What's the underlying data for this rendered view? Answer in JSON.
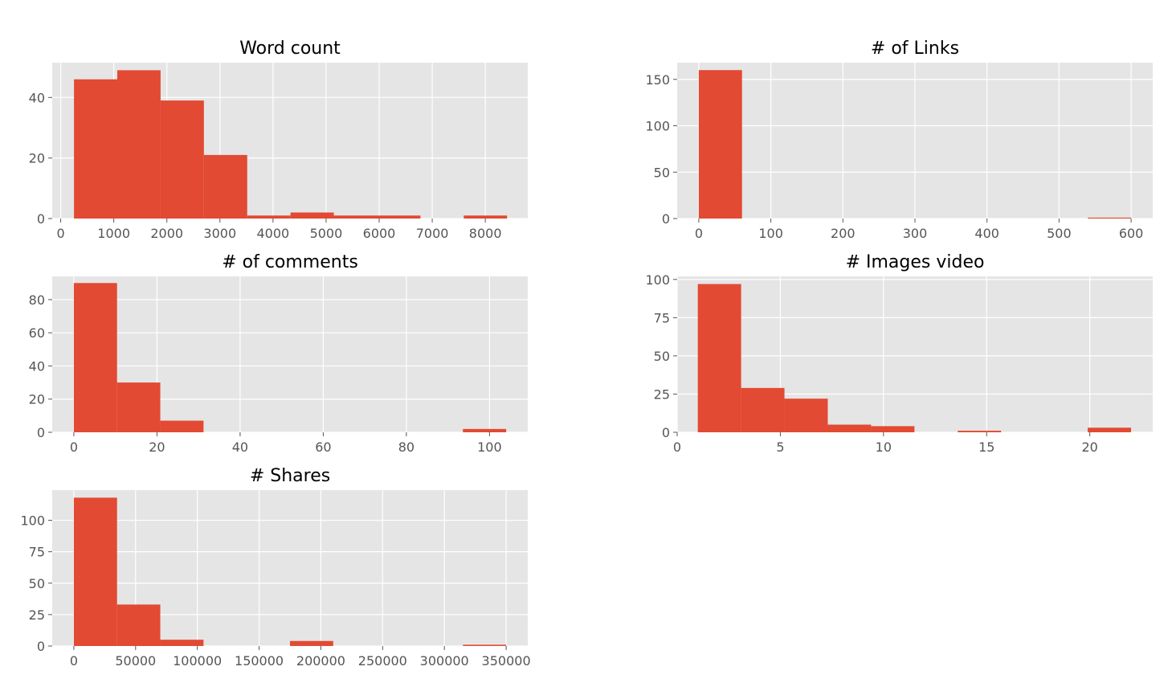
{
  "chart_data": [
    {
      "type": "bar",
      "title": "Word count",
      "xlim": [
        -160,
        8800
      ],
      "ylim": [
        0,
        51.5
      ],
      "xticks": [
        0,
        1000,
        2000,
        3000,
        4000,
        5000,
        6000,
        7000,
        8000
      ],
      "yticks": [
        0,
        20,
        40
      ],
      "bin_edges": [
        250,
        1066,
        1882,
        2698,
        3514,
        4330,
        5146,
        5962,
        6778,
        7594,
        8410
      ],
      "values": [
        46,
        49,
        39,
        21,
        1,
        2,
        1,
        1,
        0,
        1
      ],
      "grid": true,
      "legend": "none"
    },
    {
      "type": "bar",
      "title": "# of Links",
      "xlim": [
        -30,
        630
      ],
      "ylim": [
        0,
        168
      ],
      "xticks": [
        0,
        100,
        200,
        300,
        400,
        500,
        600
      ],
      "yticks": [
        0,
        50,
        100,
        150
      ],
      "bin_edges": [
        0,
        60,
        120,
        180,
        240,
        300,
        360,
        420,
        480,
        540,
        600
      ],
      "values": [
        160,
        0,
        0,
        0,
        0,
        0,
        0,
        0,
        0,
        1
      ],
      "grid": true,
      "legend": "none"
    },
    {
      "type": "bar",
      "title": "# of comments",
      "xlim": [
        -5.2,
        109.2
      ],
      "ylim": [
        0,
        94
      ],
      "xticks": [
        0,
        20,
        40,
        60,
        80,
        100
      ],
      "yticks": [
        0,
        20,
        40,
        60,
        80
      ],
      "bin_edges": [
        0,
        10.4,
        20.8,
        31.2,
        41.6,
        52,
        62.4,
        72.8,
        83.2,
        93.6,
        104
      ],
      "values": [
        90,
        30,
        7,
        0,
        0,
        0,
        0,
        0,
        0,
        2
      ],
      "grid": true,
      "legend": "none"
    },
    {
      "type": "bar",
      "title": "# Images video",
      "xlim": [
        0,
        23.05
      ],
      "ylim": [
        0,
        102
      ],
      "xticks": [
        0,
        5,
        10,
        15,
        20
      ],
      "yticks": [
        0,
        25,
        50,
        75,
        100
      ],
      "bin_edges": [
        1,
        3.1,
        5.2,
        7.3,
        9.4,
        11.5,
        13.6,
        15.7,
        17.8,
        19.9,
        22
      ],
      "values": [
        97,
        29,
        22,
        5,
        4,
        0,
        1,
        0,
        0,
        3
      ],
      "grid": true,
      "legend": "none"
    },
    {
      "type": "bar",
      "title": "# Shares",
      "xlim": [
        -17500,
        367500
      ],
      "ylim": [
        0,
        124
      ],
      "xticks": [
        0,
        50000,
        100000,
        150000,
        200000,
        250000,
        300000,
        350000
      ],
      "yticks": [
        0,
        25,
        50,
        75,
        100
      ],
      "bin_edges": [
        0,
        35000,
        70000,
        105000,
        140000,
        175000,
        210000,
        245000,
        280000,
        315000,
        350000
      ],
      "values": [
        118,
        33,
        5,
        0,
        0,
        4,
        0,
        0,
        0,
        1
      ],
      "grid": true,
      "legend": "none"
    }
  ],
  "colors": {
    "bar": "#e24a33",
    "plot_background": "#e5e5e5",
    "grid": "#ffffff",
    "tick_text": "#555555",
    "title_text": "#000000"
  }
}
